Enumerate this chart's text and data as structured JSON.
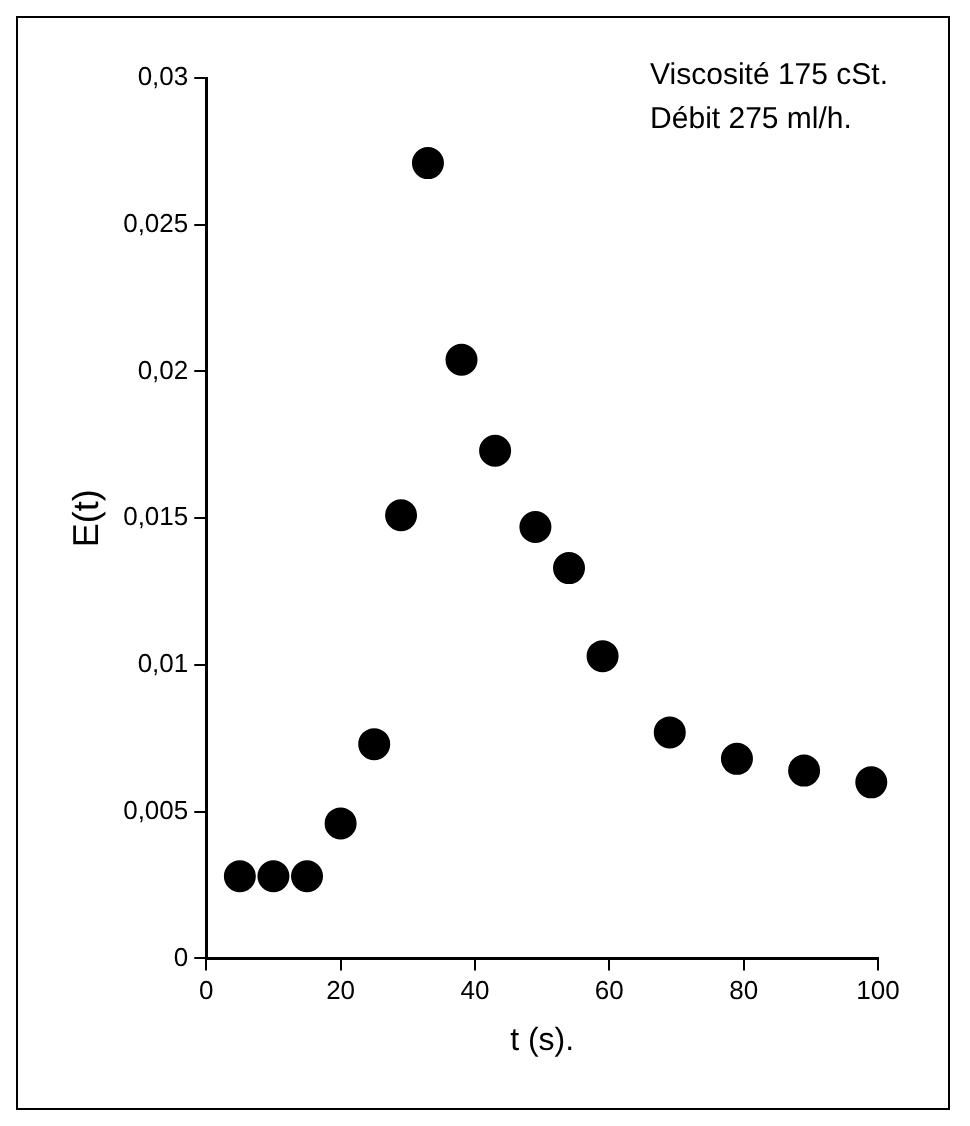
{
  "chart_data": {
    "type": "scatter",
    "annotations": [
      "Viscosité 175 cSt.",
      "Débit 275 ml/h."
    ],
    "xlabel": "t (s).",
    "ylabel": "E(t)",
    "x": [
      5,
      10,
      15,
      20,
      25,
      29,
      33,
      38,
      43,
      49,
      54,
      59,
      69,
      79,
      89,
      99
    ],
    "series": [
      {
        "color": "#000000",
        "values": [
          0.0028,
          0.0028,
          0.0028,
          0.0046,
          0.0073,
          0.0151,
          0.0271,
          0.0204,
          0.0173,
          0.0147,
          0.0133,
          0.0103,
          0.0077,
          0.0068,
          0.0064,
          0.006
        ]
      }
    ],
    "xlim": [
      0,
      100
    ],
    "xticks": [
      0,
      20,
      40,
      60,
      80,
      100
    ],
    "ylim": [
      0,
      0.03
    ],
    "yticks": [
      {
        "value": 0,
        "label": "0"
      },
      {
        "value": 0.005,
        "label": "0,005"
      },
      {
        "value": 0.01,
        "label": "0,01"
      },
      {
        "value": 0.015,
        "label": "0,015"
      },
      {
        "value": 0.02,
        "label": "0,02"
      },
      {
        "value": 0.025,
        "label": "0,025"
      },
      {
        "value": 0.03,
        "label": "0,03"
      }
    ],
    "grid": false,
    "legend": false,
    "marker": "circle"
  }
}
